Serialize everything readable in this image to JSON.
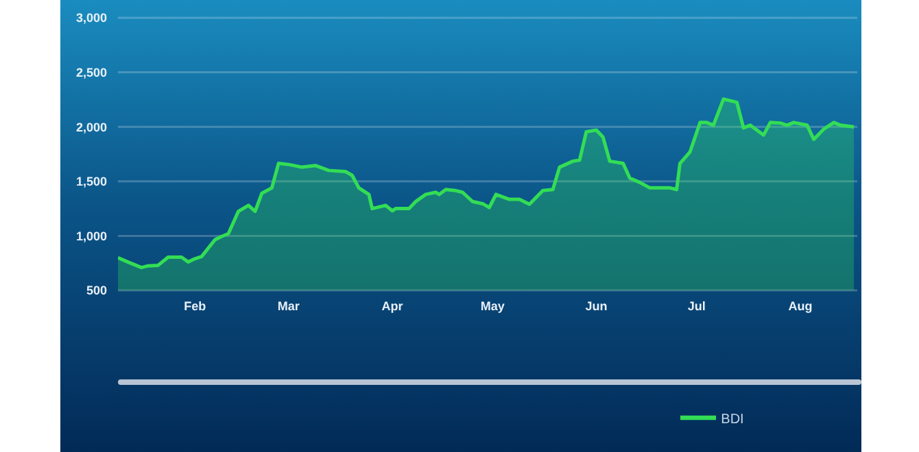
{
  "chart_data": {
    "type": "area",
    "x": [
      "--01-09",
      "--01-12",
      "--01-16",
      "--01-18",
      "--01-21",
      "--01-24",
      "--01-28",
      "--01-30",
      "--02-01",
      "--02-03",
      "--02-07",
      "--02-09",
      "--02-11",
      "--02-14",
      "--02-17",
      "--02-19",
      "--02-21",
      "--02-24",
      "--02-26",
      "--03-01",
      "--03-05",
      "--03-09",
      "--03-13",
      "--03-18",
      "--03-20",
      "--03-22",
      "--03-25",
      "--03-26",
      "--03-30",
      "--04-01",
      "--04-02",
      "--04-06",
      "--04-08",
      "--04-11",
      "--04-14",
      "--04-15",
      "--04-17",
      "--04-20",
      "--04-22",
      "--04-25",
      "--04-28",
      "--04-30",
      "--05-02",
      "--05-06",
      "--05-09",
      "--05-12",
      "--05-16",
      "--05-19",
      "--05-21",
      "--05-25",
      "--05-27",
      "--05-29",
      "--06-01",
      "--06-03",
      "--06-05",
      "--06-09",
      "--06-11",
      "--06-14",
      "--06-17",
      "--06-23",
      "--06-25",
      "--06-26",
      "--06-29",
      "--07-02",
      "--07-04",
      "--07-06",
      "--07-09",
      "--07-13",
      "--07-15",
      "--07-17",
      "--07-21",
      "--07-23",
      "--07-26",
      "--07-28",
      "--07-30",
      "--08-03",
      "--08-05",
      "--08-08",
      "--08-11",
      "--08-13",
      "--08-17"
    ],
    "series": [
      {
        "name": "BDI",
        "color": "#33dd55",
        "values": [
          800,
          760,
          710,
          725,
          730,
          805,
          805,
          760,
          790,
          810,
          965,
          995,
          1020,
          1225,
          1280,
          1225,
          1390,
          1440,
          1665,
          1655,
          1630,
          1645,
          1600,
          1590,
          1555,
          1440,
          1380,
          1250,
          1280,
          1230,
          1250,
          1250,
          1315,
          1380,
          1400,
          1380,
          1425,
          1415,
          1400,
          1315,
          1295,
          1260,
          1380,
          1335,
          1335,
          1290,
          1415,
          1425,
          1630,
          1685,
          1695,
          1955,
          1970,
          1905,
          1685,
          1665,
          1530,
          1490,
          1440,
          1440,
          1425,
          1665,
          1770,
          2040,
          2040,
          2015,
          2255,
          2225,
          1990,
          2015,
          1925,
          2040,
          2035,
          2015,
          2040,
          2015,
          1885,
          1980,
          2040,
          2015,
          2000
        ]
      }
    ],
    "xlim": [
      "--01-09",
      "--08-18"
    ],
    "xticks": [
      {
        "value": "--02-01",
        "label": "Feb"
      },
      {
        "value": "--03-01",
        "label": "Mar"
      },
      {
        "value": "--04-01",
        "label": "Apr"
      },
      {
        "value": "--05-01",
        "label": "May"
      },
      {
        "value": "--06-01",
        "label": "Jun"
      },
      {
        "value": "--07-01",
        "label": "Jul"
      },
      {
        "value": "--08-01",
        "label": "Aug"
      }
    ],
    "ylim": [
      500,
      3000
    ],
    "yticks": [
      500,
      {
        "value": 1000,
        "label": "1,000"
      },
      {
        "value": 1500,
        "label": "1,500"
      },
      {
        "value": 2000,
        "label": "2,000"
      },
      {
        "value": 2500,
        "label": "2,500"
      },
      {
        "value": 3000,
        "label": "3,000"
      }
    ],
    "grid": "y",
    "legend": "bottom"
  }
}
